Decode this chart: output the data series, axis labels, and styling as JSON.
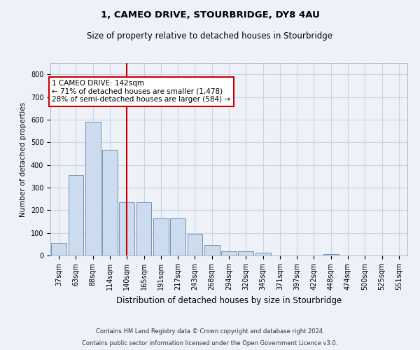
{
  "title1": "1, CAMEO DRIVE, STOURBRIDGE, DY8 4AU",
  "title2": "Size of property relative to detached houses in Stourbridge",
  "xlabel": "Distribution of detached houses by size in Stourbridge",
  "ylabel": "Number of detached properties",
  "categories": [
    "37sqm",
    "63sqm",
    "88sqm",
    "114sqm",
    "140sqm",
    "165sqm",
    "191sqm",
    "217sqm",
    "243sqm",
    "268sqm",
    "294sqm",
    "320sqm",
    "345sqm",
    "371sqm",
    "397sqm",
    "422sqm",
    "448sqm",
    "474sqm",
    "500sqm",
    "525sqm",
    "551sqm"
  ],
  "values": [
    55,
    355,
    590,
    468,
    235,
    235,
    165,
    165,
    95,
    45,
    18,
    18,
    12,
    0,
    0,
    0,
    5,
    0,
    0,
    0,
    0
  ],
  "bar_color": "#ccdcee",
  "bar_edge_color": "#7090b0",
  "vline_color": "#cc0000",
  "vline_index": 4,
  "annotation_text": "1 CAMEO DRIVE: 142sqm\n← 71% of detached houses are smaller (1,478)\n28% of semi-detached houses are larger (584) →",
  "annotation_box_color": "#ffffff",
  "annotation_box_edge": "#cc0000",
  "grid_color": "#c8d4e4",
  "ylim": [
    0,
    850
  ],
  "yticks": [
    0,
    100,
    200,
    300,
    400,
    500,
    600,
    700,
    800
  ],
  "footer1": "Contains HM Land Registry data © Crown copyright and database right 2024.",
  "footer2": "Contains public sector information licensed under the Open Government Licence v3.0.",
  "bg_color": "#eef2f8",
  "title1_fontsize": 9.5,
  "title2_fontsize": 8.5,
  "ylabel_fontsize": 7.5,
  "xlabel_fontsize": 8.5,
  "tick_fontsize": 7,
  "footer_fontsize": 6,
  "annotation_fontsize": 7.5
}
